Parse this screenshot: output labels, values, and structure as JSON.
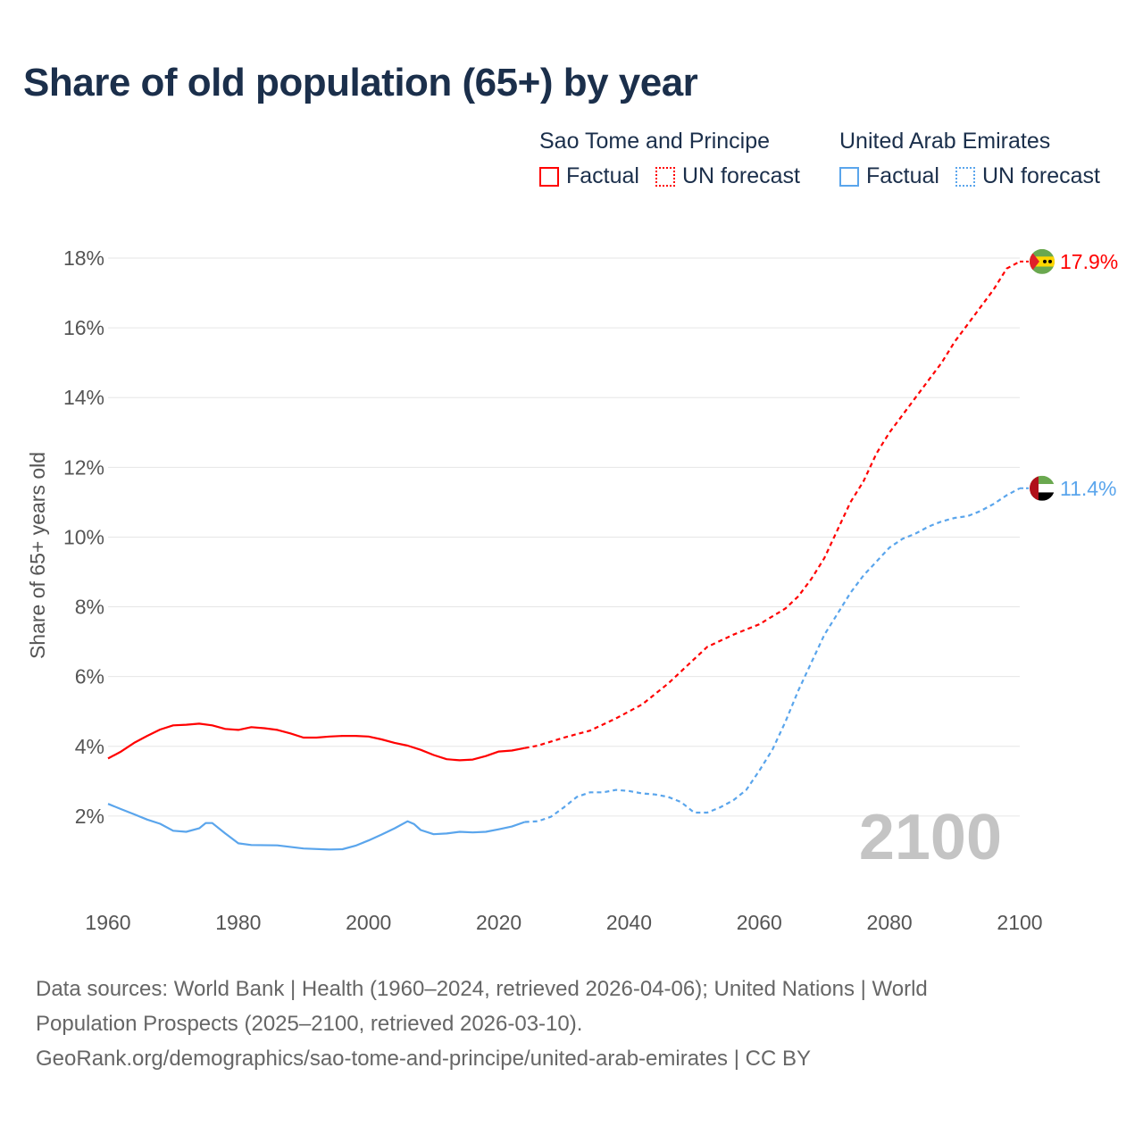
{
  "title": "Share of old population (65+) by year",
  "legend": {
    "groups": [
      {
        "country": "Sao Tome and Principe",
        "color": "#ff0000",
        "factual": "Factual",
        "forecast": "UN forecast"
      },
      {
        "country": "United Arab Emirates",
        "color": "#5aa5ec",
        "factual": "Factual",
        "forecast": "UN forecast"
      }
    ]
  },
  "year_watermark": "2100",
  "footer": {
    "line1": "Data sources: World Bank | Health (1960–2024, retrieved 2026-04-06); United Nations | World",
    "line2": "Population Prospects (2025–2100, retrieved 2026-03-10).",
    "line3": "GeoRank.org/demographics/sao-tome-and-principe/united-arab-emirates | CC BY"
  },
  "chart_data": {
    "type": "line",
    "title": "Share of old population (65+) by year",
    "xlabel": "",
    "ylabel": "Share of 65+ years old",
    "xlim": [
      1960,
      2100
    ],
    "ylim": [
      0,
      18
    ],
    "xticks": [
      "1960",
      "1980",
      "2000",
      "2020",
      "2040",
      "2060",
      "2080",
      "2100"
    ],
    "yticks": [
      "2%",
      "4%",
      "6%",
      "8%",
      "10%",
      "12%",
      "14%",
      "16%",
      "18%"
    ],
    "grid": true,
    "forecast_start": 2024,
    "series": [
      {
        "name": "Sao Tome and Principe",
        "color": "#ff0000",
        "end_label": "17.9%",
        "x": [
          1960,
          1962,
          1964,
          1966,
          1968,
          1970,
          1972,
          1974,
          1976,
          1978,
          1980,
          1982,
          1984,
          1986,
          1988,
          1990,
          1992,
          1994,
          1996,
          1998,
          2000,
          2002,
          2004,
          2006,
          2008,
          2010,
          2012,
          2014,
          2016,
          2018,
          2020,
          2022,
          2024,
          2026,
          2030,
          2034,
          2038,
          2042,
          2046,
          2050,
          2052,
          2056,
          2060,
          2064,
          2066,
          2068,
          2070,
          2072,
          2074,
          2076,
          2078,
          2080,
          2082,
          2084,
          2086,
          2088,
          2090,
          2092,
          2094,
          2096,
          2098,
          2100
        ],
        "y": [
          3.65,
          3.85,
          4.1,
          4.3,
          4.48,
          4.6,
          4.62,
          4.65,
          4.6,
          4.5,
          4.47,
          4.55,
          4.52,
          4.47,
          4.37,
          4.25,
          4.25,
          4.28,
          4.3,
          4.3,
          4.28,
          4.2,
          4.1,
          4.02,
          3.9,
          3.75,
          3.63,
          3.6,
          3.62,
          3.72,
          3.85,
          3.88,
          3.95,
          4.02,
          4.25,
          4.45,
          4.8,
          5.2,
          5.8,
          6.5,
          6.85,
          7.2,
          7.5,
          7.95,
          8.3,
          8.8,
          9.4,
          10.2,
          11.0,
          11.6,
          12.4,
          13.0,
          13.5,
          14.0,
          14.5,
          15.0,
          15.6,
          16.1,
          16.6,
          17.1,
          17.7,
          17.9
        ]
      },
      {
        "name": "United Arab Emirates",
        "color": "#5aa5ec",
        "end_label": "11.4%",
        "x": [
          1960,
          1962,
          1964,
          1966,
          1968,
          1970,
          1972,
          1974,
          1975,
          1976,
          1978,
          1980,
          1982,
          1986,
          1990,
          1994,
          1996,
          1998,
          2000,
          2002,
          2004,
          2006,
          2007,
          2008,
          2010,
          2012,
          2014,
          2016,
          2018,
          2020,
          2022,
          2024,
          2026,
          2028,
          2030,
          2032,
          2034,
          2036,
          2038,
          2040,
          2042,
          2044,
          2046,
          2048,
          2050,
          2052,
          2054,
          2056,
          2058,
          2060,
          2062,
          2064,
          2066,
          2068,
          2070,
          2072,
          2074,
          2076,
          2078,
          2080,
          2082,
          2084,
          2086,
          2088,
          2090,
          2092,
          2094,
          2096,
          2098,
          2100
        ],
        "y": [
          2.35,
          2.2,
          2.05,
          1.9,
          1.78,
          1.58,
          1.55,
          1.65,
          1.8,
          1.8,
          1.5,
          1.22,
          1.17,
          1.16,
          1.07,
          1.04,
          1.05,
          1.15,
          1.3,
          1.47,
          1.65,
          1.85,
          1.77,
          1.6,
          1.48,
          1.5,
          1.55,
          1.53,
          1.55,
          1.62,
          1.7,
          1.83,
          1.85,
          1.98,
          2.25,
          2.55,
          2.68,
          2.68,
          2.75,
          2.72,
          2.65,
          2.62,
          2.55,
          2.4,
          2.1,
          2.1,
          2.25,
          2.45,
          2.75,
          3.3,
          3.9,
          4.7,
          5.6,
          6.4,
          7.2,
          7.8,
          8.4,
          8.9,
          9.3,
          9.7,
          9.95,
          10.1,
          10.3,
          10.45,
          10.55,
          10.6,
          10.75,
          10.95,
          11.2,
          11.4
        ]
      }
    ]
  }
}
